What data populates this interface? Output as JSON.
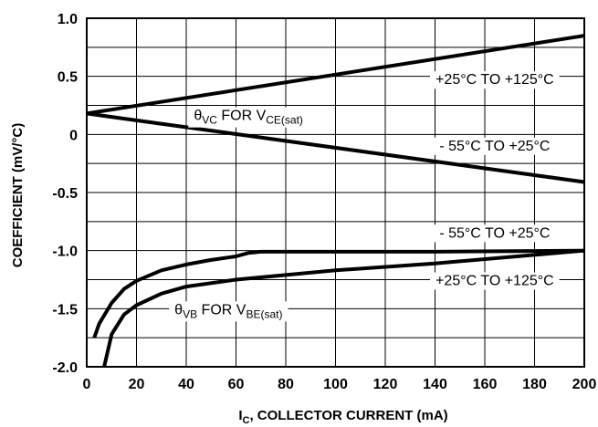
{
  "chart_data": {
    "type": "line",
    "title": "",
    "xlabel": {
      "main": "I",
      "sub": "C",
      "rest": ", COLLECTOR CURRENT (mA)"
    },
    "ylabel": "COEFFICIENT (mV/°C)",
    "xlim": [
      0,
      200
    ],
    "ylim": [
      -2.0,
      1.0
    ],
    "grid": true,
    "x_ticks": [
      0,
      20,
      40,
      60,
      80,
      100,
      120,
      140,
      160,
      180,
      200
    ],
    "y_ticks": [
      1.0,
      0.5,
      0,
      -0.5,
      -1.0,
      -1.5,
      -2.0
    ],
    "x_tick_labels": [
      "0",
      "20",
      "40",
      "60",
      "80",
      "100",
      "120",
      "140",
      "160",
      "180",
      "200"
    ],
    "y_tick_labels": [
      "1.0",
      "0.5",
      "0",
      "-0.5",
      "-1.0",
      "-1.5",
      "-2.0"
    ],
    "series": [
      {
        "x": [
          0,
          200
        ],
        "y": [
          0.18,
          0.85
        ]
      },
      {
        "x": [
          0,
          200
        ],
        "y": [
          0.18,
          -0.41
        ]
      },
      {
        "x": [
          3,
          5,
          10,
          15,
          20,
          30,
          40,
          50,
          60,
          65,
          70,
          80,
          100,
          140,
          200
        ],
        "y": [
          -1.75,
          -1.63,
          -1.45,
          -1.33,
          -1.26,
          -1.17,
          -1.12,
          -1.08,
          -1.05,
          -1.02,
          -1.01,
          -1.01,
          -1.01,
          -1.01,
          -1.0
        ]
      },
      {
        "x": [
          7,
          10,
          15,
          20,
          30,
          40,
          60,
          80,
          100,
          140,
          200
        ],
        "y": [
          -2.0,
          -1.72,
          -1.55,
          -1.47,
          -1.37,
          -1.31,
          -1.25,
          -1.21,
          -1.17,
          -1.11,
          -1.0
        ]
      }
    ],
    "annotations": [
      {
        "text": "+25°C TO +125°C",
        "x": 164,
        "y": 0.48
      },
      {
        "main": "θ",
        "sub": "VC",
        "mid": " FOR V",
        "sub2": "CE(sat)",
        "x": 65,
        "y": 0.17
      },
      {
        "text": "- 55°C TO +25°C",
        "x": 164,
        "y": -0.09
      },
      {
        "text": "- 55°C TO +25°C",
        "x": 164,
        "y": -0.84
      },
      {
        "text": "+25°C TO +125°C",
        "x": 164,
        "y": -1.25
      },
      {
        "main": "θ",
        "sub": "VB",
        "mid": " FOR V",
        "sub2": "BE(sat)",
        "x": 57,
        "y": -1.5
      }
    ]
  }
}
